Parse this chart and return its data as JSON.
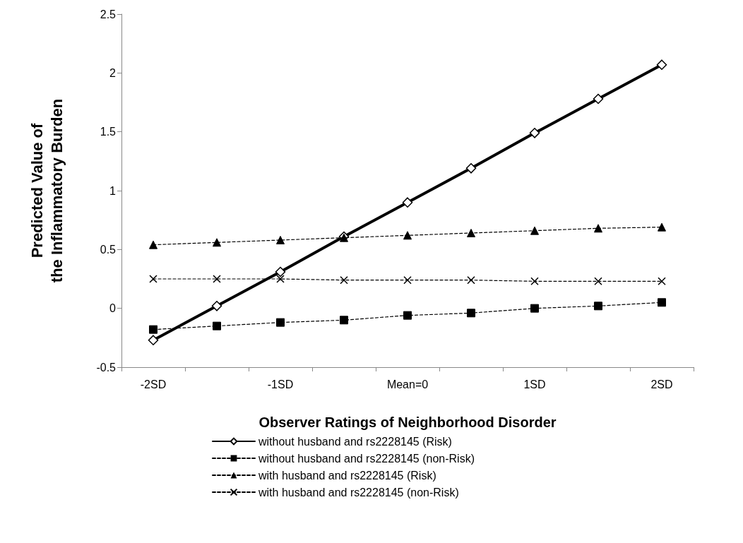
{
  "chart_data": {
    "type": "line",
    "xlabel": "Observer Ratings of Neighborhood Disorder",
    "ylabel": "Predicted Value of\nthe Inflammatory Burden",
    "categories": [
      "-2SD",
      null,
      "-1SD",
      null,
      "Mean=0",
      null,
      "1SD",
      null,
      "2SD"
    ],
    "series": [
      {
        "name": "without husband and rs2228145 (Risk)",
        "color": "#000000",
        "marker": "diamond",
        "line_style": "solid",
        "values": [
          -0.27,
          0.02,
          0.31,
          0.61,
          0.9,
          1.19,
          1.49,
          1.78,
          2.07
        ]
      },
      {
        "name": "without husband and rs2228145 (non-Risk)",
        "color": "#000000",
        "marker": "square",
        "line_style": "dashed",
        "values": [
          -0.18,
          -0.15,
          -0.12,
          -0.1,
          -0.06,
          -0.04,
          0.0,
          0.02,
          0.05
        ]
      },
      {
        "name": "with husband and rs2228145 (Risk)",
        "color": "#000000",
        "marker": "triangle",
        "line_style": "dashed",
        "values": [
          0.54,
          0.56,
          0.58,
          0.6,
          0.62,
          0.64,
          0.66,
          0.68,
          0.69
        ]
      },
      {
        "name": "with husband and rs2228145 (non-Risk)",
        "color": "#000000",
        "marker": "cross",
        "line_style": "dashed",
        "values": [
          0.25,
          0.25,
          0.25,
          0.24,
          0.24,
          0.24,
          0.23,
          0.23,
          0.23
        ]
      }
    ],
    "ylim": [
      -0.5,
      2.5
    ],
    "yticks": [
      -0.5,
      0,
      0.5,
      1,
      1.5,
      2,
      2.5
    ],
    "grid": false,
    "legend": "bottom"
  }
}
